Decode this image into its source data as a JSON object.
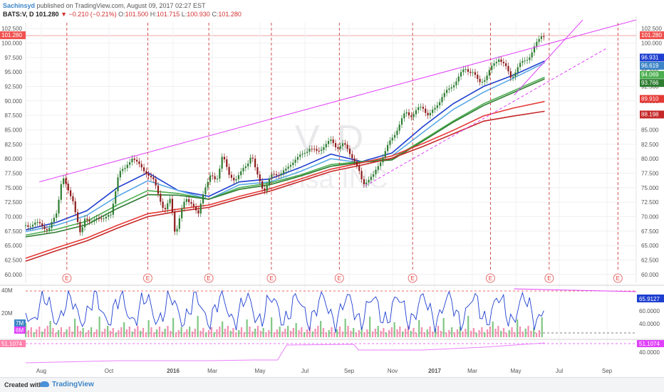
{
  "header": {
    "author": "Sachinsyd",
    "published": "published on TradingView.com, August 09, 2017 02:27 EST",
    "symbol": "BATS:V, D",
    "last": "101.280",
    "change": "−0.210 (−0.21%)",
    "open_label": "O:",
    "open": "101.500",
    "high_label": "H:",
    "high": "101.715",
    "low_label": "L:",
    "low": "100.930",
    "close_label": "C:",
    "close": "101.280"
  },
  "watermark": {
    "symbol": "V, D",
    "name": "Visa INC"
  },
  "footer": {
    "created_with": "Created with",
    "brand": "TradingView"
  },
  "chart_data": {
    "type": "candlestick",
    "x_ticks": [
      "Aug",
      "Oct",
      "2016",
      "Mar",
      "May",
      "Jul",
      "Sep",
      "Nov",
      "2017",
      "Mar",
      "May",
      "Jul",
      "Sep"
    ],
    "y_ticks": [
      "102.500",
      "100.000",
      "97.500",
      "95.000",
      "92.500",
      "90.000",
      "87.500",
      "85.000",
      "82.500",
      "80.000",
      "77.500",
      "75.000",
      "72.500",
      "70.000",
      "67.500",
      "65.000",
      "62.500",
      "60.000"
    ],
    "ylim": [
      58.5,
      103.5
    ],
    "price_labels": [
      {
        "value": "101.280",
        "color": "#ef5350",
        "num": 101.28
      },
      {
        "value": "96.931",
        "color": "#1e3fd0",
        "num": 96.931
      },
      {
        "value": "96.619",
        "color": "#3d85c6",
        "num": 96.619
      },
      {
        "value": "94.069",
        "color": "#4caf50",
        "num": 94.069
      },
      {
        "value": "93.766",
        "color": "#2e7d32",
        "num": 93.766
      },
      {
        "value": "89.910",
        "color": "#e53935",
        "num": 89.91
      },
      {
        "value": "88.198",
        "color": "#c62828",
        "num": 88.198
      }
    ],
    "price_path": [
      [
        0,
        68.5
      ],
      [
        20,
        68.8
      ],
      [
        30,
        67.5
      ],
      [
        40,
        70.5
      ],
      [
        48,
        77
      ],
      [
        55,
        74.5
      ],
      [
        62,
        73
      ],
      [
        72,
        66.5
      ],
      [
        78,
        70
      ],
      [
        88,
        69
      ],
      [
        100,
        70
      ],
      [
        112,
        70
      ],
      [
        122,
        78
      ],
      [
        130,
        78
      ],
      [
        140,
        80.5
      ],
      [
        150,
        78.5
      ],
      [
        160,
        77.5
      ],
      [
        168,
        76
      ],
      [
        175,
        73.5
      ],
      [
        182,
        71
      ],
      [
        190,
        73
      ],
      [
        196,
        67
      ],
      [
        204,
        71
      ],
      [
        210,
        73
      ],
      [
        218,
        72.5
      ],
      [
        226,
        70
      ],
      [
        234,
        75
      ],
      [
        242,
        77
      ],
      [
        250,
        76
      ],
      [
        258,
        81
      ],
      [
        266,
        77
      ],
      [
        274,
        76.5
      ],
      [
        282,
        77.5
      ],
      [
        290,
        79
      ],
      [
        296,
        81
      ],
      [
        302,
        77.5
      ],
      [
        312,
        74.5
      ],
      [
        322,
        77
      ],
      [
        332,
        77.5
      ],
      [
        342,
        78
      ],
      [
        352,
        80
      ],
      [
        362,
        80.5
      ],
      [
        372,
        82
      ],
      [
        382,
        81
      ],
      [
        392,
        82.5
      ],
      [
        400,
        83
      ],
      [
        408,
        82
      ],
      [
        416,
        82.5
      ],
      [
        422,
        81.5
      ],
      [
        430,
        80
      ],
      [
        436,
        78
      ],
      [
        442,
        75.5
      ],
      [
        448,
        76.5
      ],
      [
        456,
        77
      ],
      [
        466,
        80
      ],
      [
        474,
        82
      ],
      [
        482,
        84
      ],
      [
        490,
        86
      ],
      [
        498,
        88
      ],
      [
        506,
        87.5
      ],
      [
        514,
        88.5
      ],
      [
        520,
        89
      ],
      [
        528,
        87.5
      ],
      [
        536,
        88.5
      ],
      [
        546,
        91
      ],
      [
        556,
        92
      ],
      [
        566,
        94
      ],
      [
        576,
        95.5
      ],
      [
        586,
        95
      ],
      [
        594,
        93
      ],
      [
        602,
        94
      ],
      [
        612,
        96
      ],
      [
        620,
        97.5
      ],
      [
        628,
        96
      ],
      [
        636,
        94
      ],
      [
        646,
        96
      ],
      [
        654,
        97
      ],
      [
        662,
        98
      ],
      [
        670,
        100
      ],
      [
        676,
        101.5
      ],
      [
        680,
        101.3
      ]
    ],
    "ma": [
      {
        "name": "MA blue dark",
        "color": "#1e3fd0",
        "points": [
          [
            0,
            67.7
          ],
          [
            40,
            69
          ],
          [
            80,
            71
          ],
          [
            120,
            75
          ],
          [
            160,
            77.6
          ],
          [
            200,
            74.5
          ],
          [
            240,
            73.5
          ],
          [
            280,
            76
          ],
          [
            320,
            76.5
          ],
          [
            360,
            78.5
          ],
          [
            400,
            80.8
          ],
          [
            440,
            79.5
          ],
          [
            480,
            81
          ],
          [
            520,
            85.5
          ],
          [
            560,
            89.5
          ],
          [
            600,
            92.5
          ],
          [
            640,
            94.5
          ],
          [
            680,
            96.9
          ]
        ]
      },
      {
        "name": "MA blue light",
        "color": "#5aa9e6",
        "points": [
          [
            0,
            67.4
          ],
          [
            40,
            68.5
          ],
          [
            80,
            70.2
          ],
          [
            120,
            73.5
          ],
          [
            160,
            76.2
          ],
          [
            200,
            74.5
          ],
          [
            240,
            73
          ],
          [
            280,
            75.5
          ],
          [
            320,
            76
          ],
          [
            360,
            77.8
          ],
          [
            400,
            80
          ],
          [
            440,
            79.3
          ],
          [
            480,
            80.5
          ],
          [
            520,
            84.5
          ],
          [
            560,
            88.5
          ],
          [
            600,
            91.5
          ],
          [
            640,
            94
          ],
          [
            680,
            96.6
          ]
        ]
      },
      {
        "name": "MA green",
        "color": "#4caf50",
        "points": [
          [
            0,
            66.8
          ],
          [
            40,
            67.8
          ],
          [
            80,
            69.2
          ],
          [
            120,
            72
          ],
          [
            160,
            74.5
          ],
          [
            200,
            74
          ],
          [
            240,
            73
          ],
          [
            280,
            75
          ],
          [
            320,
            75.8
          ],
          [
            360,
            77.2
          ],
          [
            400,
            79
          ],
          [
            440,
            79.5
          ],
          [
            480,
            80
          ],
          [
            520,
            83.2
          ],
          [
            560,
            86.5
          ],
          [
            600,
            89.5
          ],
          [
            640,
            91.8
          ],
          [
            680,
            94.1
          ]
        ]
      },
      {
        "name": "MA green dark",
        "color": "#2e7d32",
        "points": [
          [
            0,
            66.5
          ],
          [
            40,
            67.3
          ],
          [
            80,
            68.6
          ],
          [
            120,
            71.4
          ],
          [
            160,
            73.8
          ],
          [
            200,
            73.7
          ],
          [
            240,
            73
          ],
          [
            280,
            74.7
          ],
          [
            320,
            75.5
          ],
          [
            360,
            77
          ],
          [
            400,
            78.7
          ],
          [
            440,
            79.4
          ],
          [
            480,
            79.8
          ],
          [
            520,
            83
          ],
          [
            560,
            86.3
          ],
          [
            600,
            89.2
          ],
          [
            640,
            91.5
          ],
          [
            680,
            93.8
          ]
        ]
      },
      {
        "name": "MA red",
        "color": "#e53935",
        "points": [
          [
            0,
            62.8
          ],
          [
            40,
            64.6
          ],
          [
            80,
            66.3
          ],
          [
            120,
            68.5
          ],
          [
            160,
            70.5
          ],
          [
            200,
            71.3
          ],
          [
            240,
            72
          ],
          [
            280,
            73.5
          ],
          [
            320,
            74.8
          ],
          [
            360,
            76.5
          ],
          [
            400,
            78.2
          ],
          [
            440,
            79.3
          ],
          [
            480,
            80.5
          ],
          [
            520,
            82.6
          ],
          [
            560,
            84.9
          ],
          [
            600,
            87.4
          ],
          [
            640,
            88.8
          ],
          [
            680,
            89.9
          ]
        ]
      },
      {
        "name": "MA red dark",
        "color": "#c62828",
        "points": [
          [
            0,
            62.3
          ],
          [
            40,
            64.1
          ],
          [
            80,
            65.8
          ],
          [
            120,
            68
          ],
          [
            160,
            70
          ],
          [
            200,
            70.9
          ],
          [
            240,
            71.6
          ],
          [
            280,
            73.1
          ],
          [
            320,
            74.4
          ],
          [
            360,
            76.1
          ],
          [
            400,
            77.8
          ],
          [
            440,
            78.9
          ],
          [
            480,
            80.1
          ],
          [
            520,
            82.1
          ],
          [
            560,
            84.3
          ],
          [
            600,
            86.5
          ],
          [
            640,
            87.4
          ],
          [
            680,
            88.2
          ]
        ]
      }
    ],
    "trendlines": [
      {
        "color": "#e040fb",
        "dashed": false,
        "points": [
          [
            18,
            76
          ],
          [
            800,
            104
          ]
        ]
      },
      {
        "color": "#e040fb",
        "dashed": false,
        "points": [
          [
            640,
            91
          ],
          [
            730,
            104
          ]
        ]
      },
      {
        "color": "#e040fb",
        "dashed": true,
        "points": [
          [
            445,
            75.3
          ],
          [
            760,
            99
          ]
        ]
      }
    ],
    "event_marker": "E",
    "event_columns": [
      54,
      160,
      240,
      322,
      411,
      507,
      609,
      686,
      776
    ],
    "vertical_bar_count": 190,
    "indicator": {
      "label": "RSI-like",
      "right_labels": [
        {
          "value": "65.9127",
          "color": "#1e3fd0"
        },
        {
          "value": "60.0000"
        },
        {
          "value": "40.0000"
        }
      ],
      "left_labels": [
        {
          "value": "40M"
        },
        {
          "value": "20M"
        },
        {
          "value": "7M",
          "color": "#3d85c6"
        },
        {
          "value": "6M",
          "color": "#e040fb"
        }
      ]
    },
    "sub_indicator": {
      "left_label": "51.1074",
      "right_labels": [
        {
          "value": "51.1074",
          "color": "#e040fb"
        },
        {
          "value": "40.0000"
        }
      ]
    }
  }
}
